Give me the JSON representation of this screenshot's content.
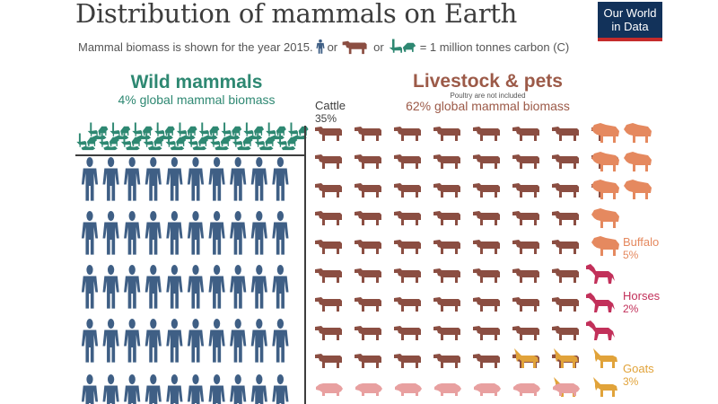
{
  "header": {
    "title": "Distribution of mammals on Earth",
    "subtitle_before": "Mammal biomass is shown for the year 2015.",
    "subtitle_or1": "or",
    "subtitle_or2": "or",
    "subtitle_after": "= 1 million tonnes carbon (C)"
  },
  "logo": {
    "line1": "Our World",
    "line2": "in Data"
  },
  "wild": {
    "heading": "Wild mammals",
    "subheading": "4% global mammal biomass"
  },
  "livestock": {
    "heading": "Livestock & pets",
    "note": "Poultry are not included",
    "subheading": "62% global mammal biomass"
  },
  "labels": {
    "cattle": {
      "name": "Cattle",
      "pct": "35%"
    },
    "buffalo": {
      "name": "Buffalo",
      "pct": "5%"
    },
    "horses": {
      "name": "Horses",
      "pct": "2%"
    },
    "goats": {
      "name": "Goats",
      "pct": "3%"
    }
  },
  "colors": {
    "humans": "#3f5f85",
    "wild": "#2e8872",
    "cattle": "#8b4e42",
    "buffalo": "#e5895f",
    "horses": "#c2305a",
    "goats": "#e1a33a",
    "pigs": "#e8a0a0",
    "divider": "#3d3d3d"
  },
  "chart_data": {
    "type": "pictogram",
    "unit": "1 million tonnes carbon (C)",
    "year": 2015,
    "visible_icons": {
      "wild_mammals": 20,
      "humans": 50,
      "cattle": 66,
      "buffalo": 8,
      "horses": 3,
      "goats": 5,
      "pigs": 7
    },
    "shares": [
      {
        "name": "Wild mammals",
        "percent": 4
      },
      {
        "name": "Livestock & pets",
        "percent": 62
      },
      {
        "name": "Cattle",
        "percent": 35
      },
      {
        "name": "Buffalo",
        "percent": 5
      },
      {
        "name": "Horses",
        "percent": 2
      },
      {
        "name": "Goats",
        "percent": 3
      }
    ]
  }
}
